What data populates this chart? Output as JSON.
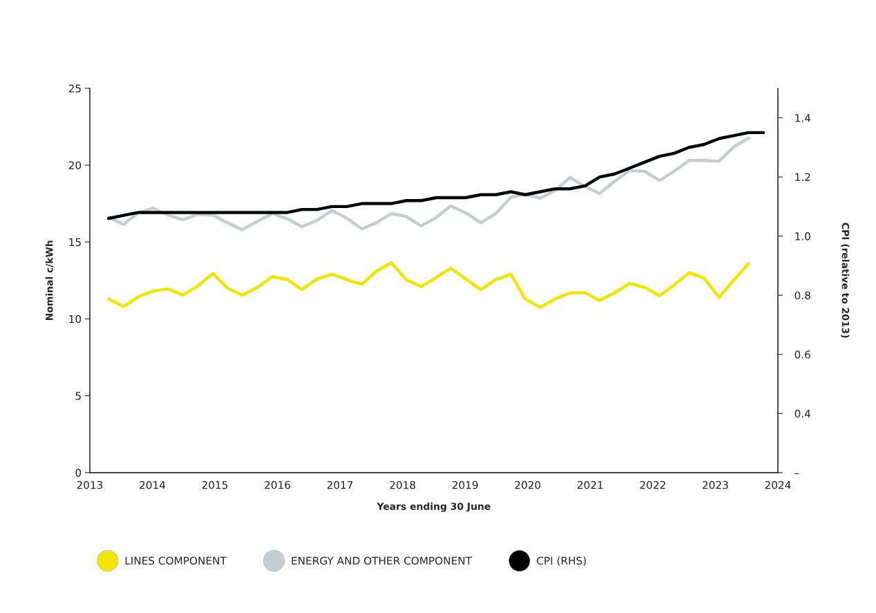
{
  "chart_data": {
    "type": "line",
    "xlabel": "Years ending 30 June",
    "ylabel": "Nominal c/kWh",
    "y2label": "CPI (relative to 2013)",
    "x": [
      2013.3,
      2013.54,
      2013.78,
      2014.01,
      2014.25,
      2014.49,
      2014.73,
      2014.97,
      2015.2,
      2015.44,
      2015.68,
      2015.92,
      2016.16,
      2016.39,
      2016.63,
      2016.87,
      2017.11,
      2017.35,
      2017.58,
      2017.82,
      2018.06,
      2018.3,
      2018.54,
      2018.77,
      2019.01,
      2019.25,
      2019.49,
      2019.73,
      2019.96,
      2020.2,
      2020.44,
      2020.68,
      2020.92,
      2021.15,
      2021.39,
      2021.63,
      2021.87,
      2022.11,
      2022.34,
      2022.58,
      2022.82,
      2023.06,
      2023.3,
      2023.53
    ],
    "series": [
      {
        "name": "LINES COMPONENT",
        "color": "#f2e600",
        "values": [
          11.3,
          10.8,
          11.45,
          11.8,
          11.95,
          11.55,
          12.15,
          12.95,
          12.0,
          11.55,
          12.05,
          12.75,
          12.55,
          11.9,
          12.6,
          12.9,
          12.55,
          12.25,
          13.1,
          13.65,
          12.55,
          12.1,
          12.7,
          13.3,
          12.6,
          11.9,
          12.55,
          12.9,
          11.3,
          10.75,
          11.3,
          11.7,
          11.7,
          11.2,
          11.7,
          12.3,
          12.05,
          11.5,
          12.2,
          13.0,
          12.65,
          11.4,
          12.55,
          13.6
        ]
      },
      {
        "name": "ENERGY AND OTHER COMPONENT",
        "color": "#c5cdd3",
        "values": [
          16.6,
          16.15,
          16.9,
          17.2,
          16.75,
          16.45,
          16.8,
          16.75,
          16.25,
          15.8,
          16.35,
          16.85,
          16.5,
          16.0,
          16.4,
          17.05,
          16.55,
          15.85,
          16.25,
          16.85,
          16.65,
          16.05,
          16.6,
          17.35,
          16.9,
          16.25,
          16.85,
          17.9,
          18.1,
          17.85,
          18.35,
          19.2,
          18.6,
          18.15,
          18.95,
          19.65,
          19.6,
          19.0,
          19.6,
          20.3,
          20.3,
          20.25,
          21.2,
          21.75
        ]
      },
      {
        "name": "CPI (RHS)",
        "color": "#000000",
        "axis": "y2",
        "x": [
          2013.3,
          2013.54,
          2013.78,
          2014.01,
          2014.25,
          2014.49,
          2014.73,
          2014.97,
          2015.2,
          2015.44,
          2015.68,
          2015.92,
          2016.16,
          2016.39,
          2016.63,
          2016.87,
          2017.11,
          2017.35,
          2017.58,
          2017.82,
          2018.06,
          2018.3,
          2018.54,
          2018.77,
          2019.01,
          2019.25,
          2019.49,
          2019.73,
          2019.96,
          2020.2,
          2020.44,
          2020.68,
          2020.92,
          2021.15,
          2021.39,
          2021.63,
          2021.87,
          2022.11,
          2022.34,
          2022.58,
          2022.82,
          2023.06,
          2023.3,
          2023.53,
          2023.77
        ],
        "values": [
          1.06,
          1.07,
          1.08,
          1.08,
          1.08,
          1.08,
          1.08,
          1.08,
          1.08,
          1.08,
          1.08,
          1.08,
          1.08,
          1.09,
          1.09,
          1.1,
          1.1,
          1.11,
          1.11,
          1.11,
          1.12,
          1.12,
          1.13,
          1.13,
          1.13,
          1.14,
          1.14,
          1.15,
          1.14,
          1.15,
          1.16,
          1.16,
          1.17,
          1.2,
          1.21,
          1.23,
          1.25,
          1.27,
          1.28,
          1.3,
          1.31,
          1.33,
          1.34,
          1.35,
          1.35
        ]
      }
    ],
    "xlim": [
      2013,
      2024
    ],
    "xticks": [
      2013,
      2014,
      2015,
      2016,
      2017,
      2018,
      2019,
      2020,
      2021,
      2022,
      2023,
      2024
    ],
    "ylim": [
      0,
      25
    ],
    "yticks": [
      0,
      5,
      10,
      15,
      20,
      25
    ],
    "y2lim": [
      0.2,
      1.5
    ],
    "y2ticks": [
      {
        "value": 0.2,
        "label": "–"
      },
      0.4,
      0.6,
      0.8,
      {
        "value": 1.0,
        "label": "1.0"
      },
      1.2,
      1.4
    ],
    "legend": "bottom left",
    "grid": false,
    "marker": "none",
    "line_style": "solid"
  }
}
